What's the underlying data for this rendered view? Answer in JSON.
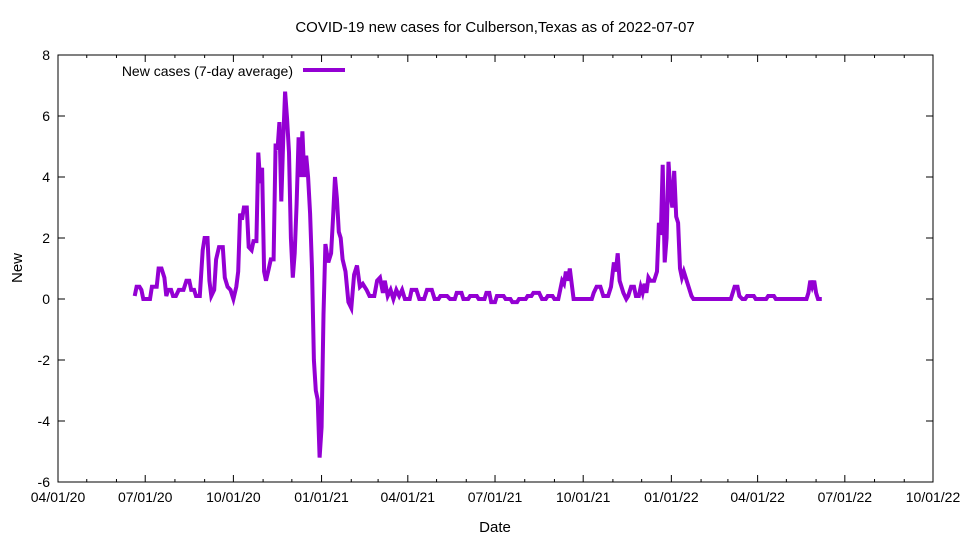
{
  "chart_data": {
    "type": "line",
    "title": "COVID-19 new cases for Culberson,Texas as of 2022-07-07",
    "xlabel": "Date",
    "ylabel": "New",
    "ylim": [
      -6,
      8
    ],
    "yticks": [
      -6,
      -4,
      -2,
      0,
      2,
      4,
      6,
      8
    ],
    "ytick_labels": [
      "-6",
      "-4",
      "-2",
      "0",
      "2",
      "4",
      "6",
      "8"
    ],
    "xlim": [
      "2020-04-01",
      "2022-10-01"
    ],
    "xticks": [
      "2020-04-01",
      "2020-07-01",
      "2020-10-01",
      "2021-01-01",
      "2021-04-01",
      "2021-07-01",
      "2021-10-01",
      "2022-01-01",
      "2022-04-01",
      "2022-07-01",
      "2022-10-01"
    ],
    "xtick_labels": [
      "04/01/20",
      "07/01/20",
      "10/01/20",
      "01/01/21",
      "04/01/21",
      "07/01/21",
      "10/01/21",
      "01/01/22",
      "04/01/22",
      "07/01/22",
      "10/01/22"
    ],
    "grid": false,
    "legend_position": "top-left",
    "colors": {
      "series": "#9400d3",
      "axes": "#000000",
      "background": "#ffffff"
    },
    "series": [
      {
        "name": "New cases (7-day average)",
        "points": [
          [
            "2020-06-20",
            0.1
          ],
          [
            "2020-06-22",
            0.4
          ],
          [
            "2020-06-25",
            0.4
          ],
          [
            "2020-06-27",
            0.3
          ],
          [
            "2020-06-29",
            0.0
          ],
          [
            "2020-07-06",
            0.0
          ],
          [
            "2020-07-08",
            0.4
          ],
          [
            "2020-07-13",
            0.4
          ],
          [
            "2020-07-15",
            1.0
          ],
          [
            "2020-07-18",
            1.0
          ],
          [
            "2020-07-21",
            0.7
          ],
          [
            "2020-07-23",
            0.1
          ],
          [
            "2020-07-25",
            0.3
          ],
          [
            "2020-07-28",
            0.3
          ],
          [
            "2020-07-30",
            0.1
          ],
          [
            "2020-08-02",
            0.1
          ],
          [
            "2020-08-05",
            0.3
          ],
          [
            "2020-08-10",
            0.3
          ],
          [
            "2020-08-13",
            0.6
          ],
          [
            "2020-08-16",
            0.6
          ],
          [
            "2020-08-18",
            0.3
          ],
          [
            "2020-08-21",
            0.3
          ],
          [
            "2020-08-23",
            0.1
          ],
          [
            "2020-08-27",
            0.1
          ],
          [
            "2020-08-30",
            1.6
          ],
          [
            "2020-09-01",
            2.0
          ],
          [
            "2020-09-04",
            2.0
          ],
          [
            "2020-09-06",
            0.6
          ],
          [
            "2020-09-08",
            0.1
          ],
          [
            "2020-09-11",
            0.3
          ],
          [
            "2020-09-13",
            1.3
          ],
          [
            "2020-09-16",
            1.7
          ],
          [
            "2020-09-20",
            1.7
          ],
          [
            "2020-09-22",
            0.7
          ],
          [
            "2020-09-25",
            0.4
          ],
          [
            "2020-09-28",
            0.3
          ],
          [
            "2020-10-01",
            0.0
          ],
          [
            "2020-10-04",
            0.4
          ],
          [
            "2020-10-06",
            0.9
          ],
          [
            "2020-10-08",
            2.8
          ],
          [
            "2020-10-10",
            2.6
          ],
          [
            "2020-10-12",
            3.0
          ],
          [
            "2020-10-15",
            3.0
          ],
          [
            "2020-10-17",
            1.7
          ],
          [
            "2020-10-20",
            1.6
          ],
          [
            "2020-10-22",
            1.9
          ],
          [
            "2020-10-25",
            1.9
          ],
          [
            "2020-10-27",
            4.8
          ],
          [
            "2020-10-29",
            3.8
          ],
          [
            "2020-10-31",
            4.3
          ],
          [
            "2020-11-02",
            0.9
          ],
          [
            "2020-11-04",
            0.6
          ],
          [
            "2020-11-07",
            1.0
          ],
          [
            "2020-11-09",
            1.3
          ],
          [
            "2020-11-12",
            1.3
          ],
          [
            "2020-11-14",
            5.1
          ],
          [
            "2020-11-16",
            4.9
          ],
          [
            "2020-11-18",
            5.8
          ],
          [
            "2020-11-20",
            3.2
          ],
          [
            "2020-11-22",
            5.2
          ],
          [
            "2020-11-24",
            6.8
          ],
          [
            "2020-11-26",
            5.9
          ],
          [
            "2020-11-28",
            4.8
          ],
          [
            "2020-11-30",
            2.0
          ],
          [
            "2020-12-02",
            0.7
          ],
          [
            "2020-12-04",
            1.5
          ],
          [
            "2020-12-06",
            3.1
          ],
          [
            "2020-12-08",
            5.3
          ],
          [
            "2020-12-10",
            4.0
          ],
          [
            "2020-12-12",
            5.5
          ],
          [
            "2020-12-14",
            4.0
          ],
          [
            "2020-12-16",
            4.7
          ],
          [
            "2020-12-18",
            4.0
          ],
          [
            "2020-12-20",
            2.8
          ],
          [
            "2020-12-22",
            1.0
          ],
          [
            "2020-12-24",
            -2.0
          ],
          [
            "2020-12-26",
            -3.0
          ],
          [
            "2020-12-28",
            -3.3
          ],
          [
            "2020-12-30",
            -5.2
          ],
          [
            "2021-01-01",
            -4.2
          ],
          [
            "2021-01-03",
            -0.5
          ],
          [
            "2021-01-05",
            1.8
          ],
          [
            "2021-01-08",
            1.2
          ],
          [
            "2021-01-11",
            1.5
          ],
          [
            "2021-01-13",
            2.7
          ],
          [
            "2021-01-15",
            4.0
          ],
          [
            "2021-01-17",
            3.3
          ],
          [
            "2021-01-19",
            2.2
          ],
          [
            "2021-01-21",
            2.0
          ],
          [
            "2021-01-23",
            1.3
          ],
          [
            "2021-01-26",
            0.9
          ],
          [
            "2021-01-29",
            -0.1
          ],
          [
            "2021-02-01",
            -0.3
          ],
          [
            "2021-02-04",
            0.8
          ],
          [
            "2021-02-07",
            1.1
          ],
          [
            "2021-02-10",
            0.4
          ],
          [
            "2021-02-13",
            0.5
          ],
          [
            "2021-02-17",
            0.3
          ],
          [
            "2021-02-20",
            0.1
          ],
          [
            "2021-02-25",
            0.1
          ],
          [
            "2021-02-28",
            0.6
          ],
          [
            "2021-03-03",
            0.7
          ],
          [
            "2021-03-06",
            0.2
          ],
          [
            "2021-03-08",
            0.6
          ],
          [
            "2021-03-11",
            0.1
          ],
          [
            "2021-03-14",
            0.3
          ],
          [
            "2021-03-17",
            0.0
          ],
          [
            "2021-03-20",
            0.3
          ],
          [
            "2021-03-23",
            0.1
          ],
          [
            "2021-03-26",
            0.3
          ],
          [
            "2021-03-29",
            0.0
          ],
          [
            "2021-04-03",
            0.0
          ],
          [
            "2021-04-05",
            0.3
          ],
          [
            "2021-04-10",
            0.3
          ],
          [
            "2021-04-13",
            0.0
          ],
          [
            "2021-04-18",
            0.0
          ],
          [
            "2021-04-21",
            0.3
          ],
          [
            "2021-04-26",
            0.3
          ],
          [
            "2021-04-29",
            0.0
          ],
          [
            "2021-05-03",
            0.0
          ],
          [
            "2021-05-05",
            0.1
          ],
          [
            "2021-05-12",
            0.1
          ],
          [
            "2021-05-15",
            0.0
          ],
          [
            "2021-05-20",
            0.0
          ],
          [
            "2021-05-22",
            0.2
          ],
          [
            "2021-05-27",
            0.2
          ],
          [
            "2021-05-29",
            0.0
          ],
          [
            "2021-06-03",
            0.0
          ],
          [
            "2021-06-05",
            0.1
          ],
          [
            "2021-06-12",
            0.1
          ],
          [
            "2021-06-14",
            0.0
          ],
          [
            "2021-06-20",
            0.0
          ],
          [
            "2021-06-22",
            0.2
          ],
          [
            "2021-06-25",
            0.2
          ],
          [
            "2021-06-27",
            -0.1
          ],
          [
            "2021-07-01",
            -0.1
          ],
          [
            "2021-07-03",
            0.1
          ],
          [
            "2021-07-10",
            0.1
          ],
          [
            "2021-07-12",
            0.0
          ],
          [
            "2021-07-17",
            0.0
          ],
          [
            "2021-07-19",
            -0.1
          ],
          [
            "2021-07-24",
            -0.1
          ],
          [
            "2021-07-26",
            0.0
          ],
          [
            "2021-08-02",
            0.0
          ],
          [
            "2021-08-04",
            0.1
          ],
          [
            "2021-08-08",
            0.1
          ],
          [
            "2021-08-10",
            0.2
          ],
          [
            "2021-08-16",
            0.2
          ],
          [
            "2021-08-19",
            0.0
          ],
          [
            "2021-08-23",
            0.0
          ],
          [
            "2021-08-25",
            0.1
          ],
          [
            "2021-08-30",
            0.1
          ],
          [
            "2021-09-01",
            0.0
          ],
          [
            "2021-09-05",
            0.0
          ],
          [
            "2021-09-07",
            0.3
          ],
          [
            "2021-09-09",
            0.6
          ],
          [
            "2021-09-11",
            0.5
          ],
          [
            "2021-09-13",
            0.9
          ],
          [
            "2021-09-15",
            0.6
          ],
          [
            "2021-09-17",
            1.0
          ],
          [
            "2021-09-19",
            0.5
          ],
          [
            "2021-09-21",
            0.0
          ],
          [
            "2021-10-10",
            0.0
          ],
          [
            "2021-10-12",
            0.2
          ],
          [
            "2021-10-15",
            0.4
          ],
          [
            "2021-10-19",
            0.4
          ],
          [
            "2021-10-22",
            0.1
          ],
          [
            "2021-10-27",
            0.1
          ],
          [
            "2021-10-30",
            0.4
          ],
          [
            "2021-11-02",
            1.2
          ],
          [
            "2021-11-04",
            0.9
          ],
          [
            "2021-11-06",
            1.5
          ],
          [
            "2021-11-08",
            0.6
          ],
          [
            "2021-11-12",
            0.2
          ],
          [
            "2021-11-15",
            0.0
          ],
          [
            "2021-11-17",
            0.1
          ],
          [
            "2021-11-20",
            0.4
          ],
          [
            "2021-11-23",
            0.4
          ],
          [
            "2021-11-25",
            0.1
          ],
          [
            "2021-11-28",
            0.1
          ],
          [
            "2021-11-30",
            0.4
          ],
          [
            "2021-12-02",
            0.2
          ],
          [
            "2021-12-04",
            0.5
          ],
          [
            "2021-12-06",
            0.2
          ],
          [
            "2021-12-08",
            0.7
          ],
          [
            "2021-12-10",
            0.6
          ],
          [
            "2021-12-14",
            0.6
          ],
          [
            "2021-12-17",
            0.9
          ],
          [
            "2021-12-19",
            2.5
          ],
          [
            "2021-12-21",
            2.1
          ],
          [
            "2021-12-23",
            4.4
          ],
          [
            "2021-12-25",
            1.2
          ],
          [
            "2021-12-27",
            2.0
          ],
          [
            "2021-12-29",
            4.5
          ],
          [
            "2021-12-31",
            3.5
          ],
          [
            "2022-01-02",
            3.0
          ],
          [
            "2022-01-04",
            4.2
          ],
          [
            "2022-01-06",
            2.7
          ],
          [
            "2022-01-08",
            2.5
          ],
          [
            "2022-01-10",
            1.0
          ],
          [
            "2022-01-12",
            0.7
          ],
          [
            "2022-01-14",
            0.9
          ],
          [
            "2022-01-16",
            0.7
          ],
          [
            "2022-01-19",
            0.4
          ],
          [
            "2022-01-22",
            0.1
          ],
          [
            "2022-01-24",
            0.0
          ],
          [
            "2022-03-04",
            0.0
          ],
          [
            "2022-03-06",
            0.2
          ],
          [
            "2022-03-08",
            0.4
          ],
          [
            "2022-03-11",
            0.4
          ],
          [
            "2022-03-13",
            0.1
          ],
          [
            "2022-03-16",
            0.0
          ],
          [
            "2022-03-19",
            0.0
          ],
          [
            "2022-03-21",
            0.1
          ],
          [
            "2022-03-28",
            0.1
          ],
          [
            "2022-03-30",
            0.0
          ],
          [
            "2022-04-10",
            0.0
          ],
          [
            "2022-04-12",
            0.1
          ],
          [
            "2022-04-18",
            0.1
          ],
          [
            "2022-04-20",
            0.0
          ],
          [
            "2022-05-22",
            0.0
          ],
          [
            "2022-05-24",
            0.2
          ],
          [
            "2022-05-26",
            0.6
          ],
          [
            "2022-05-28",
            0.4
          ],
          [
            "2022-05-30",
            0.6
          ],
          [
            "2022-06-01",
            0.2
          ],
          [
            "2022-06-03",
            0.0
          ],
          [
            "2022-06-07",
            0.0
          ]
        ]
      }
    ]
  }
}
